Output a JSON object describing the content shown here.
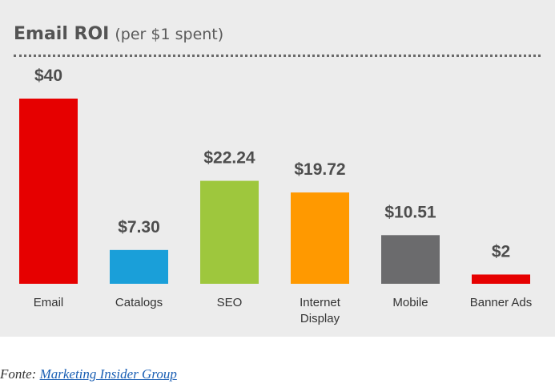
{
  "title_main": "Email ROI",
  "title_sub": "(per $1 spent)",
  "source": {
    "prefix": "Fonte:",
    "link_text": "Marketing Insider Group"
  },
  "chart_data": {
    "type": "bar",
    "title": "Email ROI (per $1 spent)",
    "categories": [
      [
        "Email"
      ],
      [
        "Catalogs"
      ],
      [
        "SEO"
      ],
      [
        "Internet",
        "Display"
      ],
      [
        "Mobile"
      ],
      [
        "Banner Ads"
      ]
    ],
    "values": [
      40,
      7.3,
      22.24,
      19.72,
      10.51,
      2
    ],
    "value_labels": [
      "$40",
      "$7.30",
      "$22.24",
      "$19.72",
      "$10.51",
      "$2"
    ],
    "colors": [
      "#e60000",
      "#1a9fd9",
      "#9ec73d",
      "#ff9900",
      "#6b6b6d",
      "#e60000"
    ],
    "ylim": [
      0,
      40
    ],
    "grid": false,
    "legend": "none"
  }
}
